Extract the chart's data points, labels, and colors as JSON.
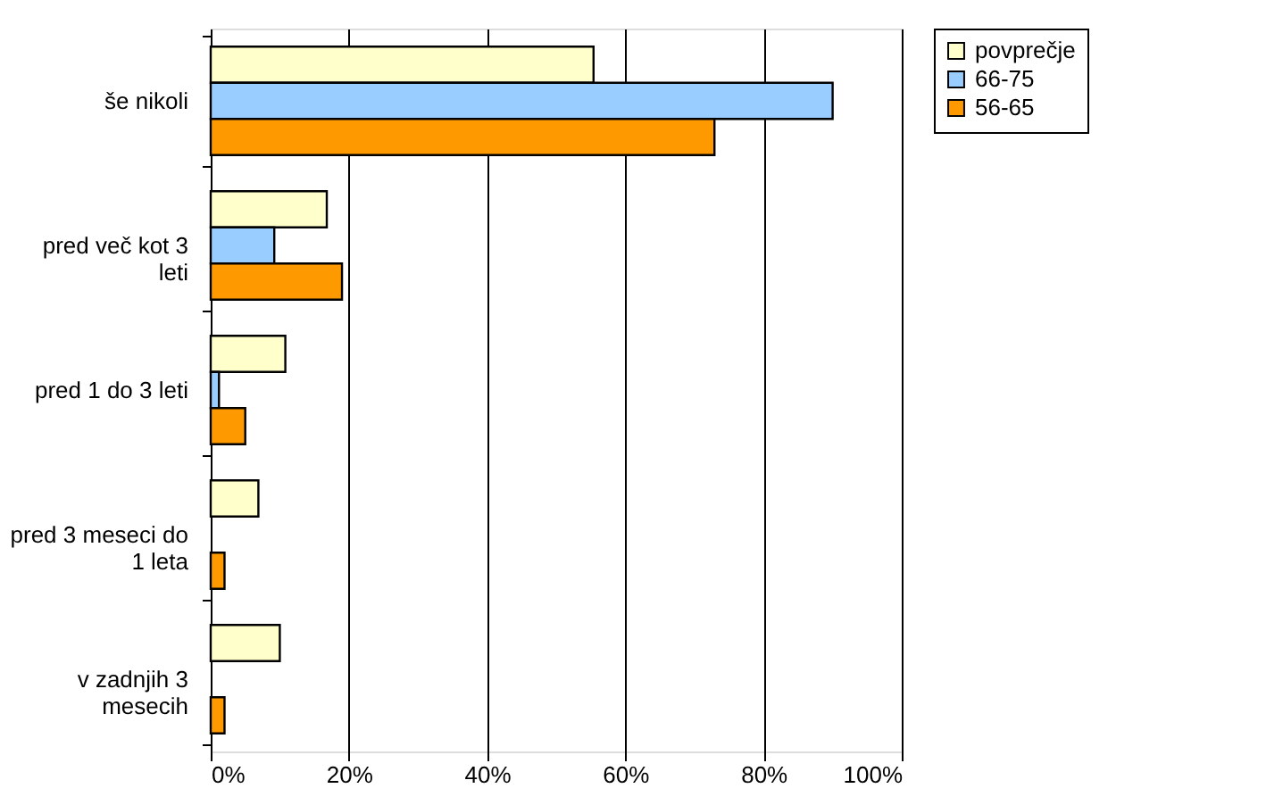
{
  "chart_data": {
    "type": "bar",
    "orientation": "horizontal",
    "categories": [
      "še nikoli",
      "pred več kot 3 leti",
      "pred 1 do 3 leti",
      "pred 3 meseci do 1 leta",
      "v zadnjih 3 mesecih"
    ],
    "series": [
      {
        "name": "povprečje",
        "color": "#ffffcc",
        "values": [
          55.4,
          16.8,
          10.8,
          6.9,
          10.0
        ]
      },
      {
        "name": "66-75",
        "color": "#99ccff",
        "values": [
          90.0,
          9.2,
          1.2,
          null,
          null
        ]
      },
      {
        "name": "56-65",
        "color": "#ff9900",
        "values": [
          72.9,
          19.0,
          5.0,
          2.0,
          2.0
        ]
      }
    ],
    "xlim": [
      0,
      100
    ],
    "xticks": [
      {
        "value": 0,
        "label": "0%"
      },
      {
        "value": 20,
        "label": "20%"
      },
      {
        "value": 40,
        "label": "40%"
      },
      {
        "value": 60,
        "label": "60%"
      },
      {
        "value": 80,
        "label": "80%"
      },
      {
        "value": 100,
        "label": "100%"
      }
    ],
    "grid": "x",
    "legend": "right"
  }
}
